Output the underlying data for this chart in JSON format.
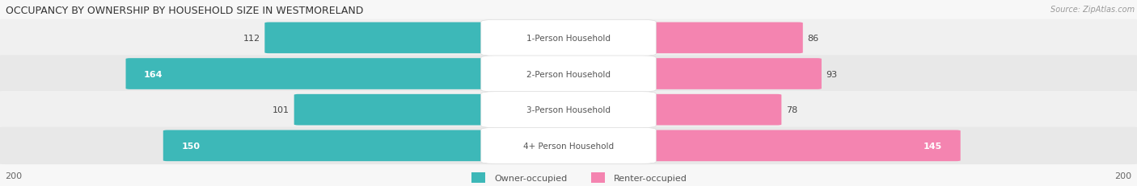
{
  "title": "OCCUPANCY BY OWNERSHIP BY HOUSEHOLD SIZE IN WESTMORELAND",
  "source": "Source: ZipAtlas.com",
  "categories": [
    "1-Person Household",
    "2-Person Household",
    "3-Person Household",
    "4+ Person Household"
  ],
  "owner_values": [
    112,
    164,
    101,
    150
  ],
  "renter_values": [
    86,
    93,
    78,
    145
  ],
  "max_scale": 200,
  "owner_color": "#3db8b8",
  "renter_color": "#f484b0",
  "owner_label": "Owner-occupied",
  "renter_label": "Renter-occupied",
  "axis_label_left": "200",
  "axis_label_right": "200",
  "row_colors": [
    "#f0f0f0",
    "#e8e8e8",
    "#f0f0f0",
    "#e8e8e8"
  ],
  "fig_bg": "#f7f7f7",
  "title_fontsize": 9,
  "bar_label_fontsize": 8,
  "category_fontsize": 7.5,
  "legend_fontsize": 8,
  "axis_fontsize": 8
}
